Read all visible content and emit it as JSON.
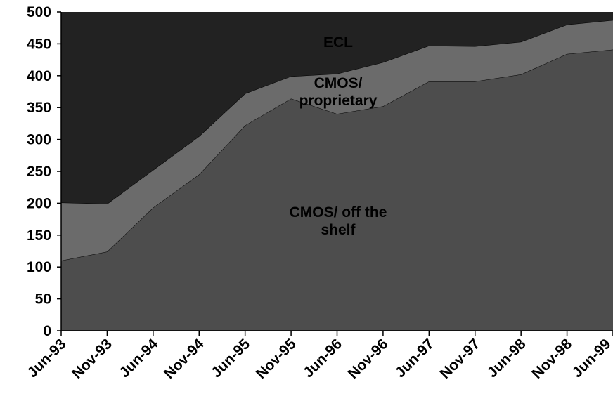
{
  "chart_data": {
    "type": "stacked_area",
    "categories": [
      "Jun-93",
      "Nov-93",
      "Jun-94",
      "Nov-94",
      "Jun-95",
      "Nov-95",
      "Jun-96",
      "Nov-96",
      "Jun-97",
      "Nov-97",
      "Jun-98",
      "Nov-98",
      "Jun-99"
    ],
    "series": [
      {
        "name": "CMOS/ off the shelf",
        "color": "#4d4d4d",
        "values": [
          110,
          124,
          193,
          245,
          322,
          364,
          340,
          352,
          391,
          391,
          402,
          434,
          441
        ]
      },
      {
        "name": "CMOS/ proprietary",
        "color": "#6b6b6b",
        "values": [
          91,
          75,
          59,
          60,
          50,
          35,
          63,
          69,
          56,
          55,
          51,
          46,
          46
        ]
      },
      {
        "name": "ECL",
        "color": "#222222",
        "values": [
          299,
          301,
          248,
          195,
          128,
          101,
          97,
          79,
          53,
          54,
          47,
          20,
          13
        ]
      }
    ],
    "ylim": [
      0,
      500
    ],
    "yticks": [
      0,
      50,
      100,
      150,
      200,
      250,
      300,
      350,
      400,
      450,
      500
    ]
  }
}
